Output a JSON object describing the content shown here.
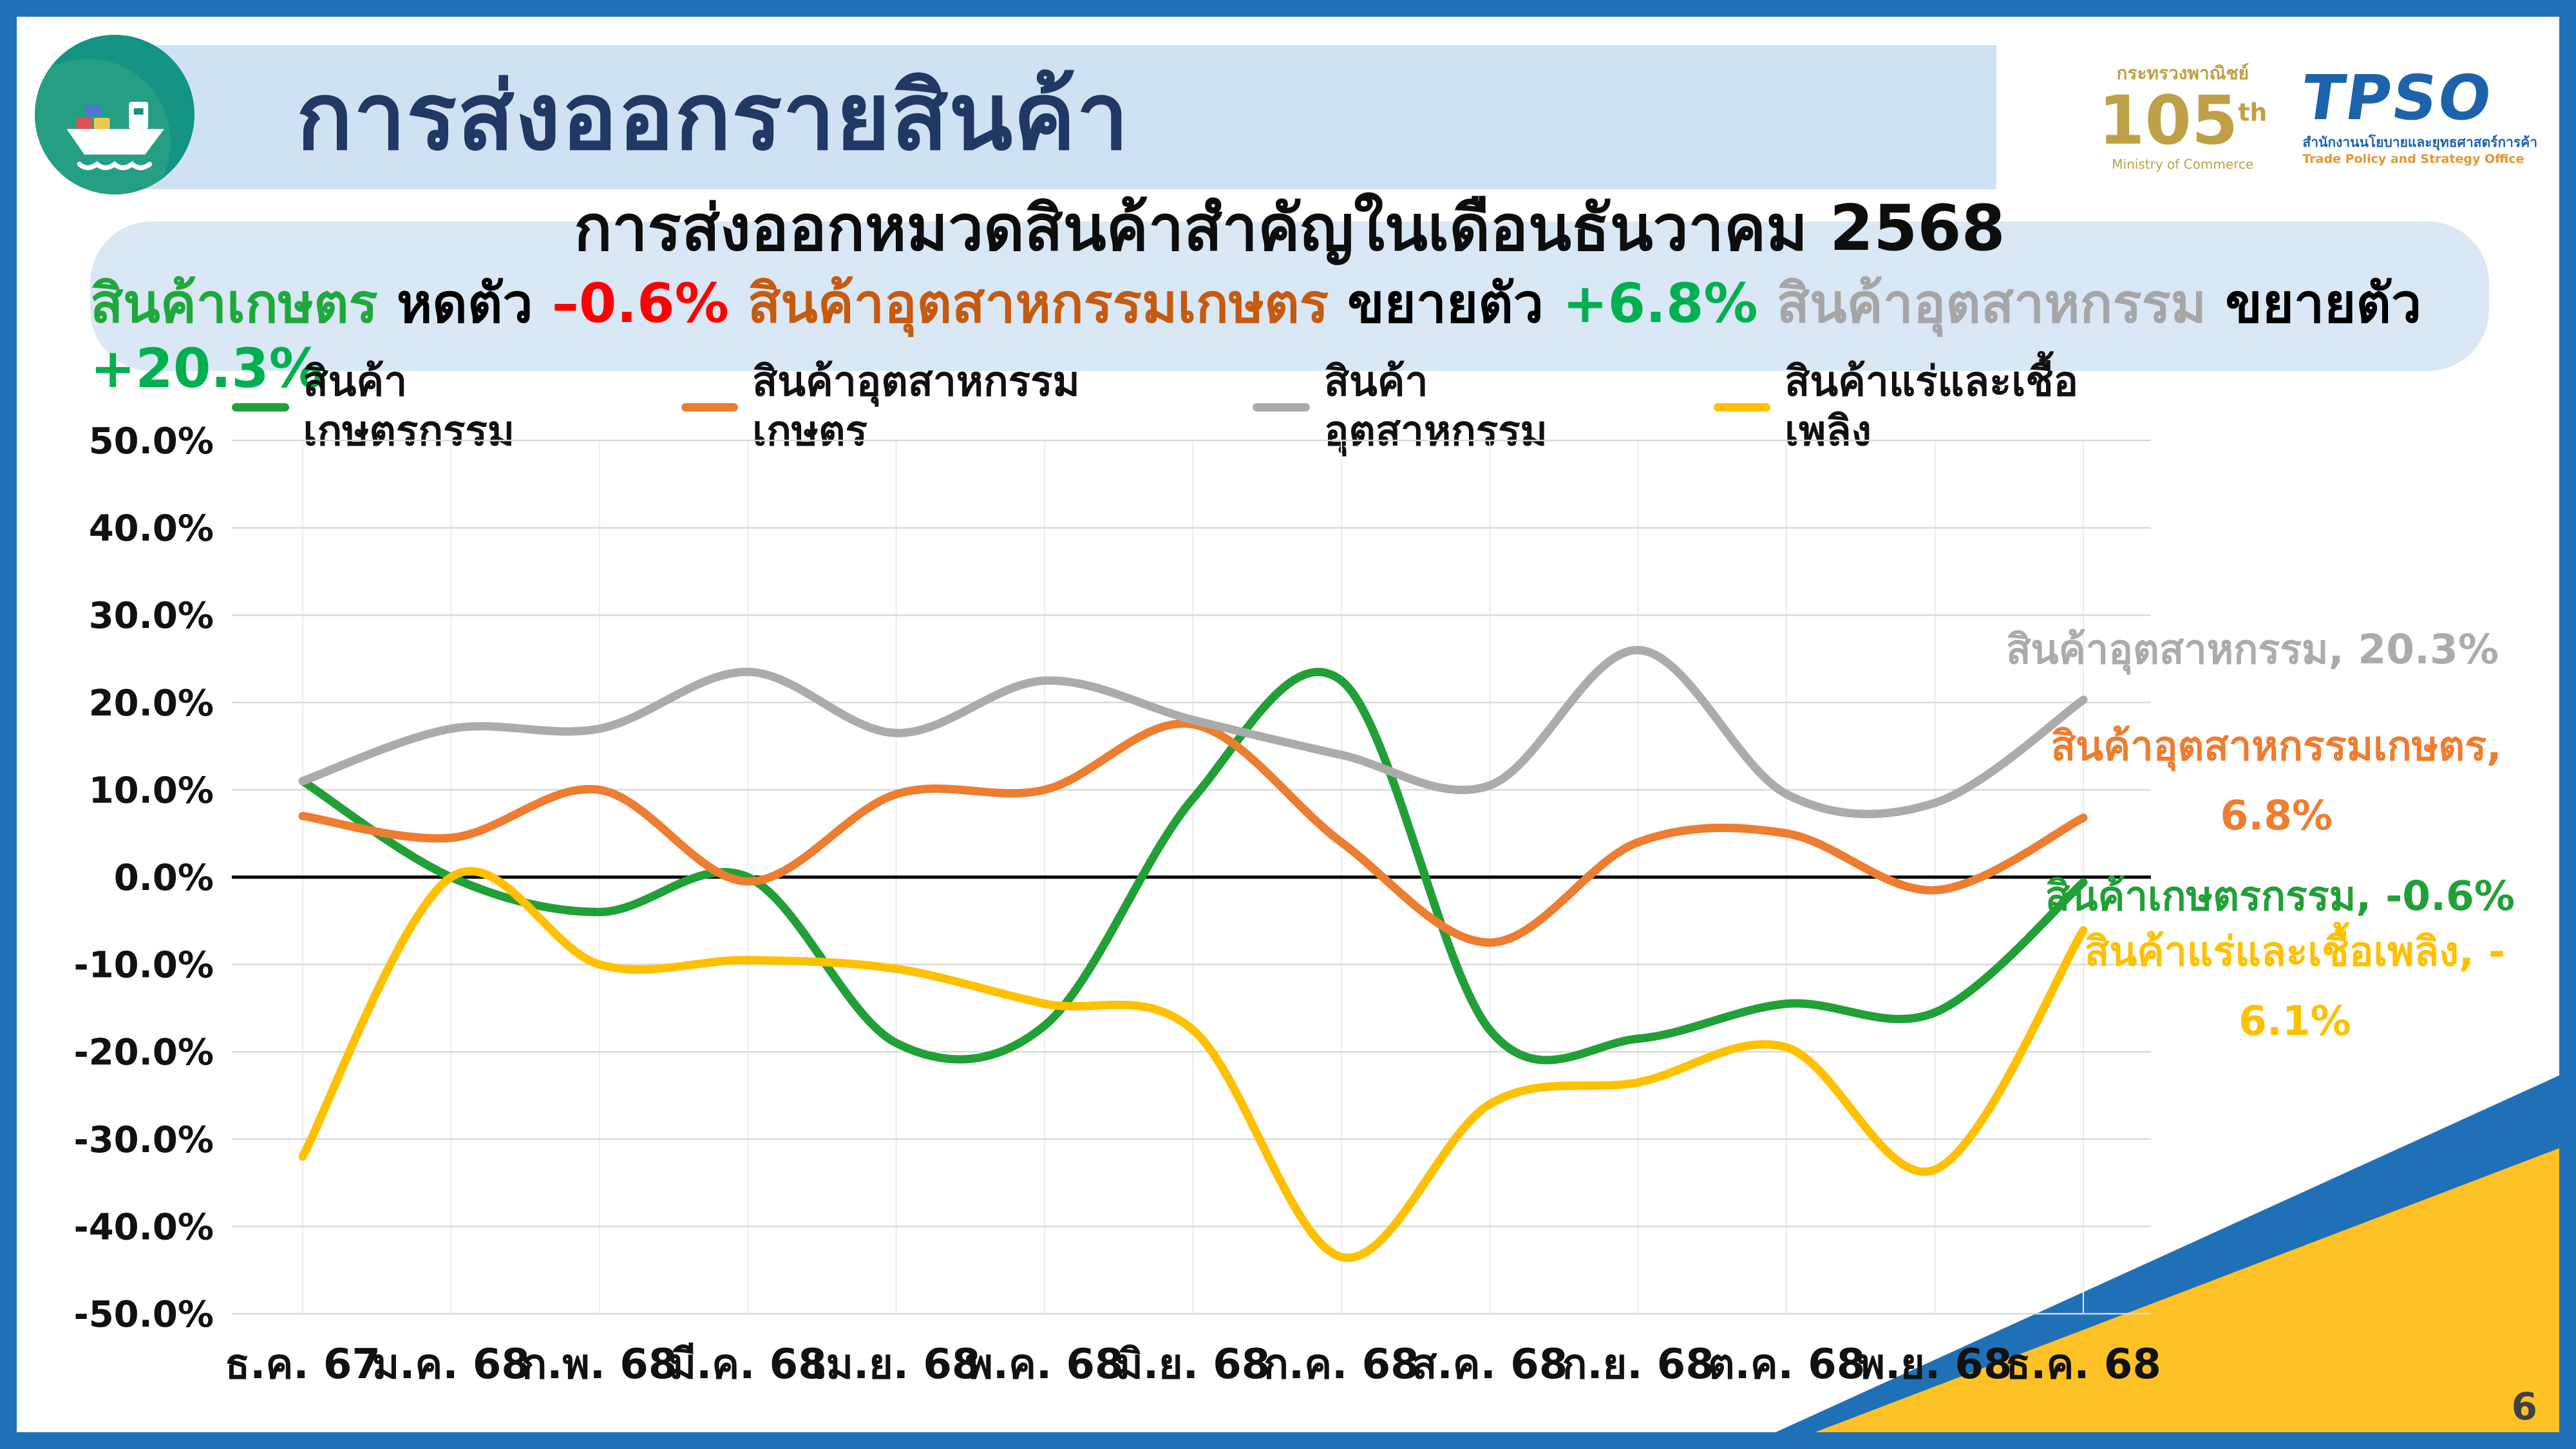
{
  "slide": {
    "title": "การส่งออกรายสินค้า",
    "page_number": "6"
  },
  "logos": {
    "ministry_thai": "กระทรวงพาณิชย์",
    "ministry_english": "Ministry of Commerce",
    "anniversary_number": "105",
    "anniversary_suffix": "th",
    "tpso_acronym": "TPSO",
    "tpso_thai": "สำนักงานนโยบายและยุทธศาสตร์การค้า",
    "tpso_english": "Trade Policy and Strategy Office"
  },
  "banner": {
    "heading": "การส่งออกหมวดสินค้าสำคัญในเดือนธันวาคม 2568",
    "segments": [
      {
        "text": "สินค้าเกษตร",
        "color": "#1FA83C"
      },
      {
        "text": " หดตัว ",
        "color": "#000000"
      },
      {
        "text": "–0.6%",
        "color": "#FF0000"
      },
      {
        "text": " สินค้าอุตสาหกรรมเกษตร ",
        "color": "#C55A11"
      },
      {
        "text": "ขยายตัว ",
        "color": "#000000"
      },
      {
        "text": "+6.8%",
        "color": "#00B050"
      },
      {
        "text": " สินค้าอุตสาหกรรม ",
        "color": "#A6A6A6"
      },
      {
        "text": "ขยายตัว ",
        "color": "#000000"
      },
      {
        "text": "+20.3%",
        "color": "#00B050"
      }
    ]
  },
  "chart_data": {
    "type": "line",
    "title": "",
    "xlabel": "",
    "ylabel": "",
    "categories": [
      "ธ.ค. 67",
      "ม.ค. 68",
      "ก.พ. 68",
      "มี.ค. 68",
      "เม.ย. 68",
      "พ.ค. 68",
      "มิ.ย. 68",
      "ก.ค. 68",
      "ส.ค. 68",
      "ก.ย. 68",
      "ต.ค. 68",
      "พ.ย. 68",
      "ธ.ค. 68"
    ],
    "series": [
      {
        "name": "สินค้าเกษตรกรรม",
        "color": "#21A038",
        "values": [
          11.0,
          0.0,
          -4.0,
          0.0,
          -19.0,
          -17.0,
          9.0,
          22.5,
          -17.5,
          -18.5,
          -14.5,
          -15.5,
          -0.6
        ]
      },
      {
        "name": "สินค้าอุตสาหกรรมเกษตร",
        "color": "#ED7D31",
        "values": [
          7.0,
          4.5,
          10.0,
          -0.5,
          9.5,
          10.0,
          17.5,
          4.0,
          -7.5,
          4.0,
          5.0,
          -1.5,
          6.8
        ]
      },
      {
        "name": "สินค้าอุตสาหกรรม",
        "color": "#ABABAB",
        "values": [
          11.0,
          17.0,
          17.0,
          23.5,
          16.5,
          22.5,
          18.0,
          14.0,
          10.5,
          26.0,
          9.5,
          8.5,
          20.3
        ]
      },
      {
        "name": "สินค้าแร่และเชื้อเพลิง",
        "color": "#FFC000",
        "values": [
          -32.0,
          0.0,
          -10.0,
          -9.5,
          -10.5,
          -14.5,
          -17.5,
          -43.5,
          -26.0,
          -23.5,
          -19.5,
          -33.5,
          -6.1
        ]
      }
    ],
    "ylim": [
      -50,
      50
    ],
    "ytick_step": 10,
    "yticks": [
      "50.0%",
      "40.0%",
      "30.0%",
      "20.0%",
      "10.0%",
      "0.0%",
      "-10.0%",
      "-20.0%",
      "-30.0%",
      "-40.0%",
      "-50.0%"
    ],
    "grid": true,
    "legend_position": "top",
    "annotations": [
      {
        "name": "industrial",
        "lines": [
          "สินค้าอุตสาหกรรม, 20.3%"
        ],
        "color": "#ABABAB"
      },
      {
        "name": "agro-industrial",
        "lines": [
          "สินค้าอุตสาหกรรมเกษตร,",
          "6.8%"
        ],
        "color": "#ED7D31"
      },
      {
        "name": "agricultural",
        "lines": [
          "สินค้าเกษตรกรรม, -0.6%"
        ],
        "color": "#21A038"
      },
      {
        "name": "mineral-fuel",
        "lines": [
          "สินค้าแร่และเชื้อเพลิง, -",
          "6.1%"
        ],
        "color": "#FFC000"
      }
    ]
  },
  "theme": {
    "frame_blue": "#2070B8",
    "header_bg": "#CFE2F3",
    "title_navy": "#1F3864",
    "banner_bg": "#DAE7F5",
    "accent_yellow": "#FFC226",
    "ministry_gold": "#BFA046",
    "tpso_blue": "#1C63AC"
  }
}
